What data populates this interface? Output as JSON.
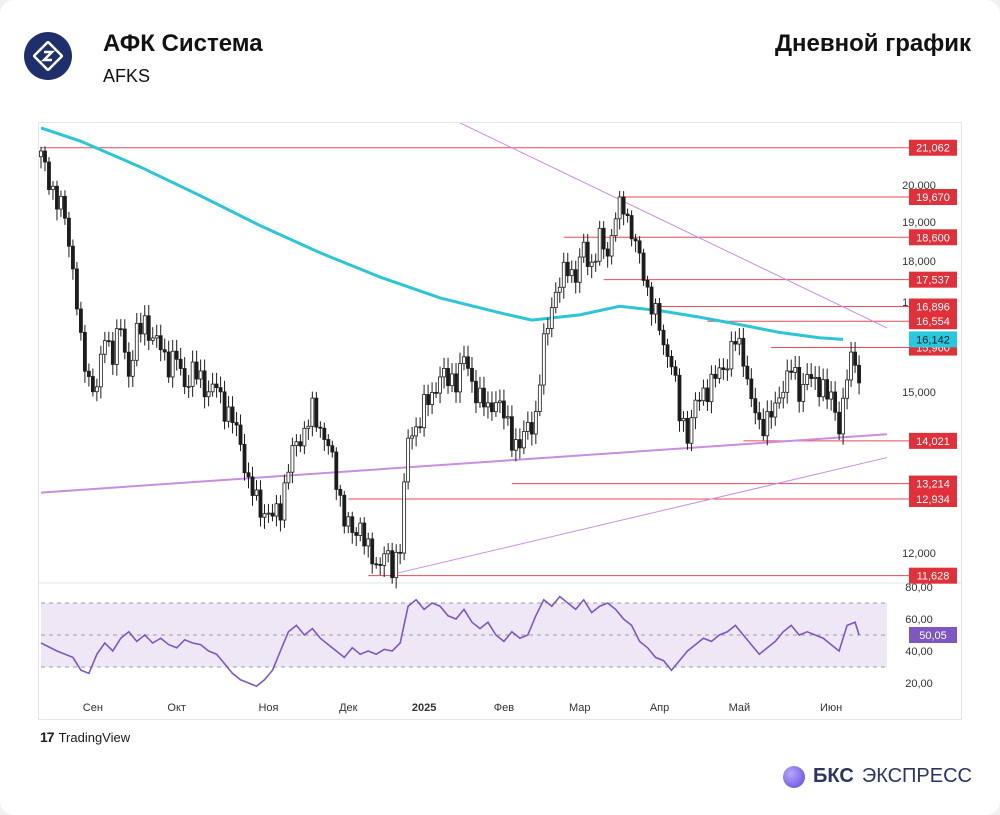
{
  "header": {
    "company": "АФК Система",
    "ticker": "AFKS",
    "chart_type_label": "Дневной график"
  },
  "footer": {
    "tradingview": "TradingView",
    "brand_bold": "БКС",
    "brand_rest": "ЭКСПРЕСС"
  },
  "colors": {
    "level_line": "#e84b5a",
    "level_tag": "#e0303a",
    "ma": "#2cc6d6",
    "trend": "#c98ee0",
    "rsi": "#7e57c2",
    "rsi_band": "#ede7f6",
    "candle": "#1c1c1c",
    "ma_tag": "#29c8dc"
  },
  "chart_data": {
    "type": "candlestick",
    "price_axis": {
      "ticks": [
        {
          "label": "20,000",
          "value": 20000
        },
        {
          "label": "19,000",
          "value": 19000
        },
        {
          "label": "18,000",
          "value": 18000
        },
        {
          "label": "17,000",
          "value": 17000
        },
        {
          "label": "15,000",
          "value": 15000
        },
        {
          "label": "12,000",
          "value": 12000
        }
      ]
    },
    "time_axis": {
      "ticks": [
        {
          "label": "Сен",
          "index": 13
        },
        {
          "label": "Окт",
          "index": 34
        },
        {
          "label": "Ноя",
          "index": 57
        },
        {
          "label": "Дек",
          "index": 77
        },
        {
          "label": "2025",
          "index": 96
        },
        {
          "label": "Фев",
          "index": 116
        },
        {
          "label": "Мар",
          "index": 135
        },
        {
          "label": "Апр",
          "index": 155
        },
        {
          "label": "Май",
          "index": 175
        },
        {
          "label": "Июн",
          "index": 198
        }
      ]
    },
    "levels": [
      {
        "label": "21,062",
        "value": 21062,
        "start": 0
      },
      {
        "label": "19,670",
        "value": 19670,
        "start": 145
      },
      {
        "label": "18,600",
        "value": 18600,
        "start": 131
      },
      {
        "label": "17,537",
        "value": 17537,
        "start": 141
      },
      {
        "label": "16,896",
        "value": 16896,
        "start": 153
      },
      {
        "label": "16,554",
        "value": 16554,
        "start": 167
      },
      {
        "label": "15,960",
        "value": 15960,
        "start": 183
      },
      {
        "label": "14,021",
        "value": 14021,
        "start": 176
      },
      {
        "label": "13,214",
        "value": 13214,
        "start": 118
      },
      {
        "label": "12,934",
        "value": 12934,
        "start": 77
      },
      {
        "label": "11,628",
        "value": 11628,
        "start": 82
      }
    ],
    "moving_average": {
      "last_label": "16,142",
      "points": [
        [
          0,
          21650
        ],
        [
          10,
          21250
        ],
        [
          25,
          20500
        ],
        [
          40,
          19700
        ],
        [
          55,
          18900
        ],
        [
          70,
          18200
        ],
        [
          85,
          17600
        ],
        [
          100,
          17100
        ],
        [
          115,
          16750
        ],
        [
          123,
          16580
        ],
        [
          135,
          16700
        ],
        [
          145,
          16900
        ],
        [
          155,
          16800
        ],
        [
          165,
          16650
        ],
        [
          175,
          16480
        ],
        [
          185,
          16300
        ],
        [
          195,
          16180
        ],
        [
          201,
          16142
        ]
      ]
    },
    "trendlines": [
      {
        "from": [
          0,
          13050
        ],
        "to": [
          212,
          14150
        ]
      },
      {
        "from": [
          88,
          11650
        ],
        "to": [
          212,
          13700
        ]
      },
      {
        "from": [
          105,
          21800
        ],
        "to": [
          212,
          16400
        ]
      }
    ],
    "close_series": [
      [
        0,
        20800
      ],
      [
        2,
        20200
      ],
      [
        4,
        19500
      ],
      [
        6,
        19200
      ],
      [
        8,
        17800
      ],
      [
        10,
        16000
      ],
      [
        12,
        15300
      ],
      [
        14,
        15000
      ],
      [
        16,
        16300
      ],
      [
        18,
        15800
      ],
      [
        20,
        16400
      ],
      [
        22,
        15400
      ],
      [
        24,
        16200
      ],
      [
        26,
        16600
      ],
      [
        28,
        16100
      ],
      [
        30,
        16000
      ],
      [
        32,
        15600
      ],
      [
        34,
        15700
      ],
      [
        36,
        15200
      ],
      [
        38,
        15400
      ],
      [
        40,
        15300
      ],
      [
        42,
        15000
      ],
      [
        44,
        15100
      ],
      [
        46,
        14700
      ],
      [
        48,
        14400
      ],
      [
        50,
        14000
      ],
      [
        52,
        13200
      ],
      [
        54,
        12900
      ],
      [
        56,
        12700
      ],
      [
        58,
        12600
      ],
      [
        60,
        12800
      ],
      [
        62,
        13500
      ],
      [
        64,
        14000
      ],
      [
        66,
        14200
      ],
      [
        68,
        14600
      ],
      [
        70,
        14300
      ],
      [
        72,
        13900
      ],
      [
        74,
        13300
      ],
      [
        76,
        12600
      ],
      [
        78,
        12300
      ],
      [
        80,
        12500
      ],
      [
        82,
        12000
      ],
      [
        84,
        11800
      ],
      [
        86,
        12000
      ],
      [
        88,
        11700
      ],
      [
        90,
        12200
      ],
      [
        92,
        14000
      ],
      [
        94,
        14300
      ],
      [
        96,
        14700
      ],
      [
        98,
        14900
      ],
      [
        100,
        15400
      ],
      [
        102,
        15200
      ],
      [
        104,
        15300
      ],
      [
        106,
        15700
      ],
      [
        108,
        15200
      ],
      [
        110,
        14900
      ],
      [
        112,
        14600
      ],
      [
        114,
        14900
      ],
      [
        116,
        14500
      ],
      [
        118,
        14100
      ],
      [
        120,
        13900
      ],
      [
        122,
        14300
      ],
      [
        124,
        14500
      ],
      [
        126,
        16000
      ],
      [
        128,
        17000
      ],
      [
        130,
        17400
      ],
      [
        132,
        17900
      ],
      [
        134,
        17600
      ],
      [
        136,
        18300
      ],
      [
        138,
        17900
      ],
      [
        140,
        18500
      ],
      [
        142,
        18200
      ],
      [
        144,
        19200
      ],
      [
        146,
        19400
      ],
      [
        148,
        18800
      ],
      [
        150,
        18000
      ],
      [
        152,
        17300
      ],
      [
        154,
        16700
      ],
      [
        156,
        16000
      ],
      [
        158,
        15700
      ],
      [
        160,
        14500
      ],
      [
        162,
        14200
      ],
      [
        164,
        14700
      ],
      [
        166,
        15000
      ],
      [
        168,
        15200
      ],
      [
        170,
        15400
      ],
      [
        172,
        15700
      ],
      [
        174,
        16100
      ],
      [
        176,
        15800
      ],
      [
        178,
        14800
      ],
      [
        180,
        14300
      ],
      [
        182,
        14500
      ],
      [
        184,
        14600
      ],
      [
        186,
        15200
      ],
      [
        188,
        15500
      ],
      [
        190,
        15000
      ],
      [
        192,
        15400
      ],
      [
        194,
        15100
      ],
      [
        196,
        15200
      ],
      [
        198,
        14800
      ],
      [
        200,
        14300
      ],
      [
        202,
        15400
      ],
      [
        204,
        15700
      ],
      [
        205,
        15200
      ]
    ],
    "rsi": {
      "ticks": [
        {
          "label": "80,00",
          "value": 80
        },
        {
          "label": "60,00",
          "value": 60
        },
        {
          "label": "40,00",
          "value": 40
        },
        {
          "label": "20,00",
          "value": 20
        }
      ],
      "band": [
        30,
        70
      ],
      "last_label": "50,05",
      "points": [
        [
          0,
          45
        ],
        [
          4,
          40
        ],
        [
          8,
          36
        ],
        [
          10,
          28
        ],
        [
          12,
          26
        ],
        [
          14,
          38
        ],
        [
          16,
          45
        ],
        [
          18,
          40
        ],
        [
          20,
          48
        ],
        [
          22,
          52
        ],
        [
          24,
          46
        ],
        [
          26,
          50
        ],
        [
          28,
          45
        ],
        [
          30,
          48
        ],
        [
          32,
          44
        ],
        [
          34,
          42
        ],
        [
          36,
          47
        ],
        [
          38,
          45
        ],
        [
          40,
          44
        ],
        [
          42,
          40
        ],
        [
          44,
          38
        ],
        [
          46,
          32
        ],
        [
          48,
          26
        ],
        [
          50,
          22
        ],
        [
          52,
          20
        ],
        [
          54,
          18
        ],
        [
          56,
          22
        ],
        [
          58,
          28
        ],
        [
          60,
          40
        ],
        [
          62,
          52
        ],
        [
          64,
          56
        ],
        [
          66,
          50
        ],
        [
          68,
          54
        ],
        [
          70,
          48
        ],
        [
          72,
          44
        ],
        [
          74,
          40
        ],
        [
          76,
          36
        ],
        [
          78,
          42
        ],
        [
          80,
          38
        ],
        [
          82,
          40
        ],
        [
          84,
          38
        ],
        [
          86,
          41
        ],
        [
          88,
          40
        ],
        [
          90,
          45
        ],
        [
          92,
          68
        ],
        [
          94,
          72
        ],
        [
          96,
          66
        ],
        [
          98,
          70
        ],
        [
          100,
          68
        ],
        [
          102,
          62
        ],
        [
          104,
          60
        ],
        [
          106,
          66
        ],
        [
          108,
          58
        ],
        [
          110,
          54
        ],
        [
          112,
          58
        ],
        [
          114,
          50
        ],
        [
          116,
          46
        ],
        [
          118,
          52
        ],
        [
          120,
          48
        ],
        [
          122,
          50
        ],
        [
          124,
          62
        ],
        [
          126,
          72
        ],
        [
          128,
          68
        ],
        [
          130,
          74
        ],
        [
          132,
          70
        ],
        [
          134,
          66
        ],
        [
          136,
          72
        ],
        [
          138,
          64
        ],
        [
          140,
          68
        ],
        [
          142,
          70
        ],
        [
          144,
          66
        ],
        [
          146,
          60
        ],
        [
          148,
          56
        ],
        [
          150,
          46
        ],
        [
          152,
          42
        ],
        [
          154,
          36
        ],
        [
          156,
          34
        ],
        [
          158,
          28
        ],
        [
          160,
          34
        ],
        [
          162,
          40
        ],
        [
          164,
          44
        ],
        [
          166,
          48
        ],
        [
          168,
          46
        ],
        [
          170,
          50
        ],
        [
          172,
          52
        ],
        [
          174,
          56
        ],
        [
          176,
          50
        ],
        [
          178,
          44
        ],
        [
          180,
          38
        ],
        [
          182,
          42
        ],
        [
          184,
          46
        ],
        [
          186,
          52
        ],
        [
          188,
          56
        ],
        [
          190,
          50
        ],
        [
          192,
          52
        ],
        [
          194,
          50
        ],
        [
          196,
          48
        ],
        [
          198,
          44
        ],
        [
          200,
          40
        ],
        [
          202,
          56
        ],
        [
          204,
          58
        ],
        [
          205,
          50
        ]
      ]
    }
  }
}
